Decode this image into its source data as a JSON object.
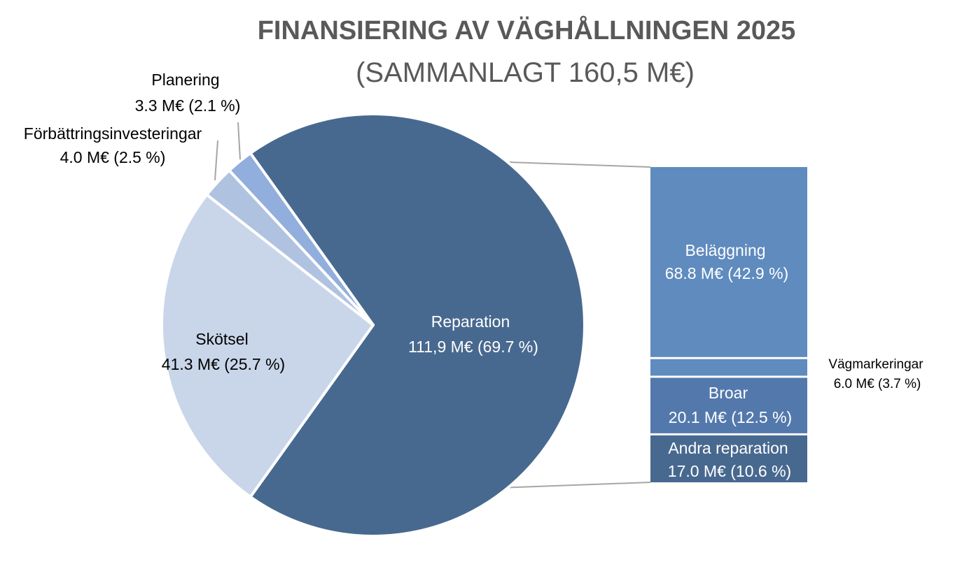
{
  "chart_data": {
    "type": "pie",
    "title": "FINANSIERING AV VÄGHÅLLNINGEN 2025",
    "subtitle": "(SAMMANLAGT 160,5 M€)",
    "slices": [
      {
        "name": "Reparation",
        "value": 111.9,
        "percent": 69.7,
        "value_text": "111,9 M€ (69.7 %)",
        "color": "#48698F"
      },
      {
        "name": "Skötsel",
        "value": 41.3,
        "percent": 25.7,
        "value_text": "41.3 M€ (25.7 %)",
        "color": "#C9D6E9"
      },
      {
        "name": "Förbättringsinvesteringar",
        "value": 4.0,
        "percent": 2.5,
        "value_text": "4.0 M€ (2.5 %)",
        "color": "#AFC2E0"
      },
      {
        "name": "Planering",
        "value": 3.3,
        "percent": 2.1,
        "value_text": "3.3 M€ (2.1 %)",
        "color": "#91AEDC"
      }
    ],
    "breakdown": {
      "of": "Reparation",
      "items": [
        {
          "name": "Beläggning",
          "value": 68.8,
          "percent": 42.9,
          "value_text": "68.8 M€ (42.9 %)",
          "color": "#5F8BBE"
        },
        {
          "name": "Vägmarkeringar",
          "value": 6.0,
          "percent": 3.7,
          "value_text": "6.0 M€ (3.7 %)",
          "color": "#5F8BBE"
        },
        {
          "name": "Broar",
          "value": 20.1,
          "percent": 12.5,
          "value_text": "20.1 M€ (12.5 %)",
          "color": "#5379AC"
        },
        {
          "name": "Andra reparation",
          "value": 17.0,
          "percent": 10.6,
          "value_text": "17.0 M€ (10.6 %)",
          "color": "#48698F"
        }
      ]
    }
  }
}
